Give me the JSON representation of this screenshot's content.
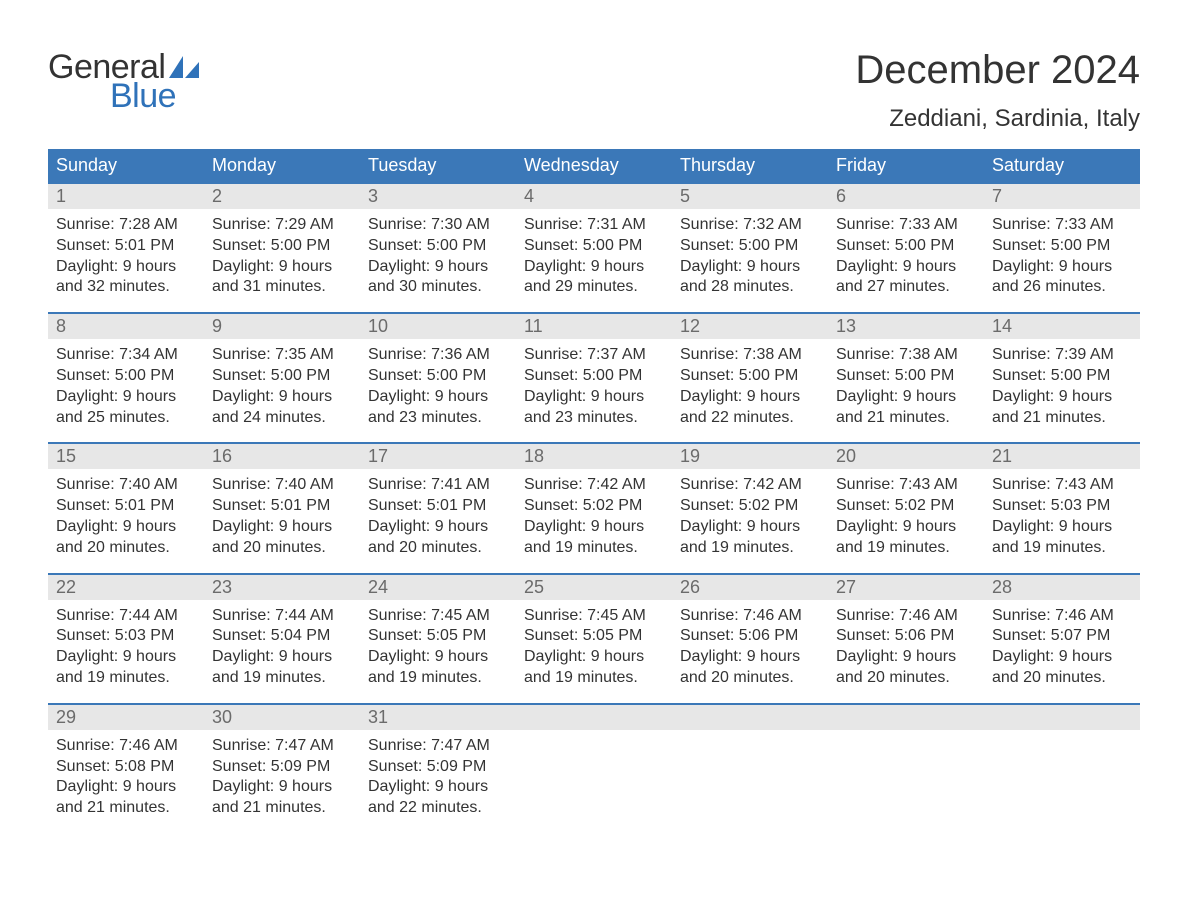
{
  "logo": {
    "text1": "General",
    "text2": "Blue",
    "shape_color": "#2f72b9"
  },
  "title": "December 2024",
  "location": "Zeddiani, Sardinia, Italy",
  "colors": {
    "header_bg": "#3b78b8",
    "header_text": "#ffffff",
    "daynum_bg": "#e7e7e7",
    "daynum_text": "#6b6b6b",
    "body_text": "#333333",
    "rule": "#3b78b8",
    "page_bg": "#ffffff"
  },
  "typography": {
    "title_fontsize": 40,
    "location_fontsize": 24,
    "weekday_fontsize": 18,
    "daynum_fontsize": 18,
    "body_fontsize": 16,
    "font_family": "Arial"
  },
  "calendar": {
    "type": "table",
    "columns": [
      "Sunday",
      "Monday",
      "Tuesday",
      "Wednesday",
      "Thursday",
      "Friday",
      "Saturday"
    ],
    "weeks": [
      [
        {
          "day": "1",
          "sunrise": "Sunrise: 7:28 AM",
          "sunset": "Sunset: 5:01 PM",
          "daylight1": "Daylight: 9 hours",
          "daylight2": "and 32 minutes."
        },
        {
          "day": "2",
          "sunrise": "Sunrise: 7:29 AM",
          "sunset": "Sunset: 5:00 PM",
          "daylight1": "Daylight: 9 hours",
          "daylight2": "and 31 minutes."
        },
        {
          "day": "3",
          "sunrise": "Sunrise: 7:30 AM",
          "sunset": "Sunset: 5:00 PM",
          "daylight1": "Daylight: 9 hours",
          "daylight2": "and 30 minutes."
        },
        {
          "day": "4",
          "sunrise": "Sunrise: 7:31 AM",
          "sunset": "Sunset: 5:00 PM",
          "daylight1": "Daylight: 9 hours",
          "daylight2": "and 29 minutes."
        },
        {
          "day": "5",
          "sunrise": "Sunrise: 7:32 AM",
          "sunset": "Sunset: 5:00 PM",
          "daylight1": "Daylight: 9 hours",
          "daylight2": "and 28 minutes."
        },
        {
          "day": "6",
          "sunrise": "Sunrise: 7:33 AM",
          "sunset": "Sunset: 5:00 PM",
          "daylight1": "Daylight: 9 hours",
          "daylight2": "and 27 minutes."
        },
        {
          "day": "7",
          "sunrise": "Sunrise: 7:33 AM",
          "sunset": "Sunset: 5:00 PM",
          "daylight1": "Daylight: 9 hours",
          "daylight2": "and 26 minutes."
        }
      ],
      [
        {
          "day": "8",
          "sunrise": "Sunrise: 7:34 AM",
          "sunset": "Sunset: 5:00 PM",
          "daylight1": "Daylight: 9 hours",
          "daylight2": "and 25 minutes."
        },
        {
          "day": "9",
          "sunrise": "Sunrise: 7:35 AM",
          "sunset": "Sunset: 5:00 PM",
          "daylight1": "Daylight: 9 hours",
          "daylight2": "and 24 minutes."
        },
        {
          "day": "10",
          "sunrise": "Sunrise: 7:36 AM",
          "sunset": "Sunset: 5:00 PM",
          "daylight1": "Daylight: 9 hours",
          "daylight2": "and 23 minutes."
        },
        {
          "day": "11",
          "sunrise": "Sunrise: 7:37 AM",
          "sunset": "Sunset: 5:00 PM",
          "daylight1": "Daylight: 9 hours",
          "daylight2": "and 23 minutes."
        },
        {
          "day": "12",
          "sunrise": "Sunrise: 7:38 AM",
          "sunset": "Sunset: 5:00 PM",
          "daylight1": "Daylight: 9 hours",
          "daylight2": "and 22 minutes."
        },
        {
          "day": "13",
          "sunrise": "Sunrise: 7:38 AM",
          "sunset": "Sunset: 5:00 PM",
          "daylight1": "Daylight: 9 hours",
          "daylight2": "and 21 minutes."
        },
        {
          "day": "14",
          "sunrise": "Sunrise: 7:39 AM",
          "sunset": "Sunset: 5:00 PM",
          "daylight1": "Daylight: 9 hours",
          "daylight2": "and 21 minutes."
        }
      ],
      [
        {
          "day": "15",
          "sunrise": "Sunrise: 7:40 AM",
          "sunset": "Sunset: 5:01 PM",
          "daylight1": "Daylight: 9 hours",
          "daylight2": "and 20 minutes."
        },
        {
          "day": "16",
          "sunrise": "Sunrise: 7:40 AM",
          "sunset": "Sunset: 5:01 PM",
          "daylight1": "Daylight: 9 hours",
          "daylight2": "and 20 minutes."
        },
        {
          "day": "17",
          "sunrise": "Sunrise: 7:41 AM",
          "sunset": "Sunset: 5:01 PM",
          "daylight1": "Daylight: 9 hours",
          "daylight2": "and 20 minutes."
        },
        {
          "day": "18",
          "sunrise": "Sunrise: 7:42 AM",
          "sunset": "Sunset: 5:02 PM",
          "daylight1": "Daylight: 9 hours",
          "daylight2": "and 19 minutes."
        },
        {
          "day": "19",
          "sunrise": "Sunrise: 7:42 AM",
          "sunset": "Sunset: 5:02 PM",
          "daylight1": "Daylight: 9 hours",
          "daylight2": "and 19 minutes."
        },
        {
          "day": "20",
          "sunrise": "Sunrise: 7:43 AM",
          "sunset": "Sunset: 5:02 PM",
          "daylight1": "Daylight: 9 hours",
          "daylight2": "and 19 minutes."
        },
        {
          "day": "21",
          "sunrise": "Sunrise: 7:43 AM",
          "sunset": "Sunset: 5:03 PM",
          "daylight1": "Daylight: 9 hours",
          "daylight2": "and 19 minutes."
        }
      ],
      [
        {
          "day": "22",
          "sunrise": "Sunrise: 7:44 AM",
          "sunset": "Sunset: 5:03 PM",
          "daylight1": "Daylight: 9 hours",
          "daylight2": "and 19 minutes."
        },
        {
          "day": "23",
          "sunrise": "Sunrise: 7:44 AM",
          "sunset": "Sunset: 5:04 PM",
          "daylight1": "Daylight: 9 hours",
          "daylight2": "and 19 minutes."
        },
        {
          "day": "24",
          "sunrise": "Sunrise: 7:45 AM",
          "sunset": "Sunset: 5:05 PM",
          "daylight1": "Daylight: 9 hours",
          "daylight2": "and 19 minutes."
        },
        {
          "day": "25",
          "sunrise": "Sunrise: 7:45 AM",
          "sunset": "Sunset: 5:05 PM",
          "daylight1": "Daylight: 9 hours",
          "daylight2": "and 19 minutes."
        },
        {
          "day": "26",
          "sunrise": "Sunrise: 7:46 AM",
          "sunset": "Sunset: 5:06 PM",
          "daylight1": "Daylight: 9 hours",
          "daylight2": "and 20 minutes."
        },
        {
          "day": "27",
          "sunrise": "Sunrise: 7:46 AM",
          "sunset": "Sunset: 5:06 PM",
          "daylight1": "Daylight: 9 hours",
          "daylight2": "and 20 minutes."
        },
        {
          "day": "28",
          "sunrise": "Sunrise: 7:46 AM",
          "sunset": "Sunset: 5:07 PM",
          "daylight1": "Daylight: 9 hours",
          "daylight2": "and 20 minutes."
        }
      ],
      [
        {
          "day": "29",
          "sunrise": "Sunrise: 7:46 AM",
          "sunset": "Sunset: 5:08 PM",
          "daylight1": "Daylight: 9 hours",
          "daylight2": "and 21 minutes."
        },
        {
          "day": "30",
          "sunrise": "Sunrise: 7:47 AM",
          "sunset": "Sunset: 5:09 PM",
          "daylight1": "Daylight: 9 hours",
          "daylight2": "and 21 minutes."
        },
        {
          "day": "31",
          "sunrise": "Sunrise: 7:47 AM",
          "sunset": "Sunset: 5:09 PM",
          "daylight1": "Daylight: 9 hours",
          "daylight2": "and 22 minutes."
        },
        null,
        null,
        null,
        null
      ]
    ]
  }
}
